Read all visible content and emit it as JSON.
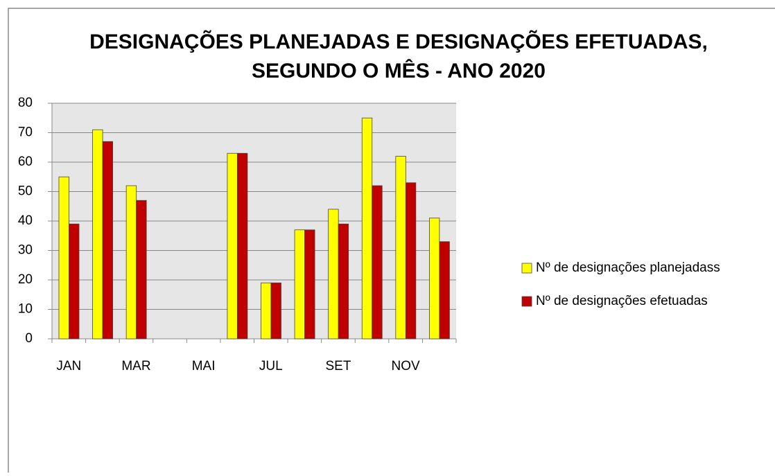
{
  "chart_data": {
    "type": "bar",
    "title": [
      "DESIGNAÇÕES PLANEJADAS E DESIGNAÇÕES EFETUADAS,",
      "SEGUNDO O MÊS - ANO 2020"
    ],
    "categories": [
      "JAN",
      null,
      "MAR",
      null,
      "MAI",
      null,
      "JUL",
      null,
      "SET",
      null,
      "NOV",
      null
    ],
    "series": [
      {
        "name": "Nº de designações planejadass",
        "color": "#ffff00",
        "values": [
          55,
          71,
          52,
          0,
          0,
          63,
          19,
          37,
          44,
          75,
          62,
          41
        ]
      },
      {
        "name": "Nº de designações efetuadas",
        "color": "#c00000",
        "values": [
          39,
          67,
          47,
          0,
          0,
          63,
          19,
          37,
          39,
          52,
          53,
          33
        ]
      }
    ],
    "ylim": [
      0,
      80
    ],
    "yticks": [
      0,
      10,
      20,
      30,
      40,
      50,
      60,
      70,
      80
    ],
    "grid": true,
    "legend": "right"
  }
}
